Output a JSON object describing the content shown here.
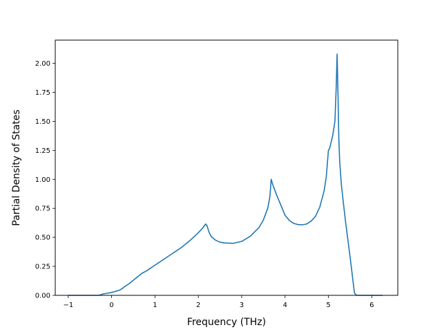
{
  "chart_data": {
    "type": "line",
    "title": "",
    "xlabel": "Frequency (THz)",
    "ylabel": "Partial Density of States",
    "xlim": [
      -1.3,
      6.6
    ],
    "ylim": [
      0,
      2.2
    ],
    "xticks": [
      -1,
      0,
      1,
      2,
      3,
      4,
      5,
      6
    ],
    "xtick_labels": [
      "−1",
      "0",
      "1",
      "2",
      "3",
      "4",
      "5",
      "6"
    ],
    "yticks": [
      0.0,
      0.25,
      0.5,
      0.75,
      1.0,
      1.25,
      1.5,
      1.75,
      2.0
    ],
    "ytick_labels": [
      "0.00",
      "0.25",
      "0.50",
      "0.75",
      "1.00",
      "1.25",
      "1.50",
      "1.75",
      "2.00"
    ],
    "grid": false,
    "series": [
      {
        "color": "#1f77b4",
        "x": [
          -1.0,
          -0.7,
          -0.4,
          -0.3,
          -0.25,
          -0.2,
          -0.1,
          0.0,
          0.1,
          0.2,
          0.25,
          0.3,
          0.4,
          0.5,
          0.6,
          0.7,
          0.8,
          0.9,
          1.0,
          1.2,
          1.4,
          1.6,
          1.8,
          2.0,
          2.1,
          2.17,
          2.2,
          2.25,
          2.3,
          2.4,
          2.5,
          2.6,
          2.8,
          3.0,
          3.2,
          3.4,
          3.5,
          3.6,
          3.65,
          3.68,
          3.72,
          3.8,
          3.9,
          4.0,
          4.1,
          4.2,
          4.3,
          4.4,
          4.5,
          4.6,
          4.7,
          4.8,
          4.9,
          4.95,
          5.0,
          5.03,
          5.05,
          5.1,
          5.15,
          5.18,
          5.2,
          5.22,
          5.24,
          5.26,
          5.3,
          5.35,
          5.4,
          5.5,
          5.6,
          5.65,
          5.7,
          6.0,
          6.25
        ],
        "y": [
          0.0,
          0.0,
          0.0,
          0.0,
          0.005,
          0.012,
          0.018,
          0.025,
          0.035,
          0.048,
          0.06,
          0.075,
          0.1,
          0.13,
          0.16,
          0.19,
          0.21,
          0.235,
          0.26,
          0.31,
          0.36,
          0.41,
          0.47,
          0.54,
          0.58,
          0.615,
          0.6,
          0.54,
          0.505,
          0.475,
          0.458,
          0.452,
          0.448,
          0.465,
          0.51,
          0.585,
          0.65,
          0.75,
          0.85,
          1.0,
          0.95,
          0.87,
          0.78,
          0.69,
          0.645,
          0.62,
          0.61,
          0.608,
          0.615,
          0.64,
          0.68,
          0.76,
          0.9,
          1.02,
          1.25,
          1.27,
          1.3,
          1.38,
          1.5,
          1.8,
          2.08,
          1.75,
          1.35,
          1.15,
          0.95,
          0.78,
          0.62,
          0.33,
          0.02,
          0.0,
          0.0,
          0.0,
          0.0
        ]
      }
    ]
  }
}
